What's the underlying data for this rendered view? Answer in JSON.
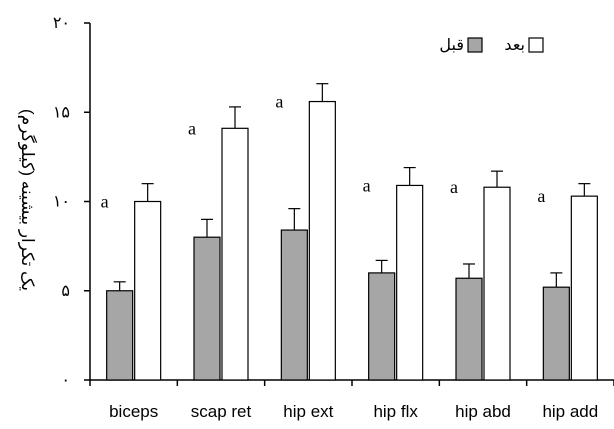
{
  "chart_data": {
    "type": "bar",
    "ylabel": "یک تکرار بیشینه (کیلوگرم)",
    "ylim": [
      0,
      20
    ],
    "y_ticks": [
      0,
      5,
      10,
      15,
      20
    ],
    "y_tick_labels": [
      "۰",
      "۵",
      "۱۰",
      "۱۵",
      "۲۰"
    ],
    "categories": [
      "biceps",
      "scap ret",
      "hip ext",
      "hip flx",
      "hip abd",
      "hip add"
    ],
    "series": [
      {
        "name": "قبل",
        "color": "#a6a6a6",
        "values": [
          5.0,
          8.0,
          8.4,
          6.0,
          5.7,
          5.2
        ],
        "errors": [
          0.5,
          1.0,
          1.2,
          0.7,
          0.8,
          0.8
        ]
      },
      {
        "name": "بعد",
        "color": "#ffffff",
        "values": [
          10.0,
          14.1,
          15.6,
          10.9,
          10.8,
          10.3
        ],
        "errors": [
          1.0,
          1.2,
          1.0,
          1.0,
          0.9,
          0.7
        ]
      }
    ],
    "annotations": [
      "a",
      "a",
      "a",
      "a",
      "a",
      "a"
    ],
    "legend": {
      "placement": "top-right"
    },
    "grid": false
  }
}
